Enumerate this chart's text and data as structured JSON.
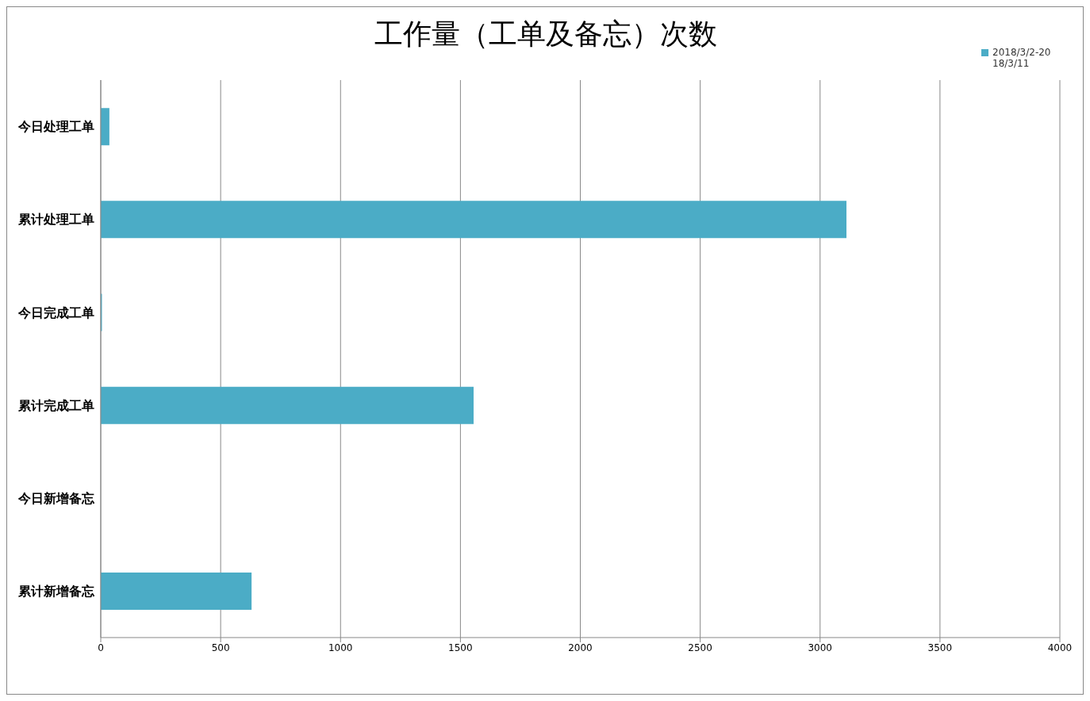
{
  "chart_data": {
    "type": "bar",
    "orientation": "horizontal",
    "title": "工作量（工单及备忘）次数",
    "categories": [
      "今日处理工单",
      "累计处理工单",
      "今日完成工单",
      "累计完成工单",
      "今日新增备忘",
      "累计新增备忘"
    ],
    "series": [
      {
        "name": "2018/3/2-2018/3/11",
        "color": "#4bacc6",
        "values": [
          36,
          3110,
          5,
          1555,
          0,
          629
        ]
      }
    ],
    "xlim": [
      0,
      4000
    ],
    "xticks": [
      0,
      500,
      1000,
      1500,
      2000,
      2500,
      3000,
      3500,
      4000
    ],
    "grid": "x",
    "legend": "top right"
  }
}
